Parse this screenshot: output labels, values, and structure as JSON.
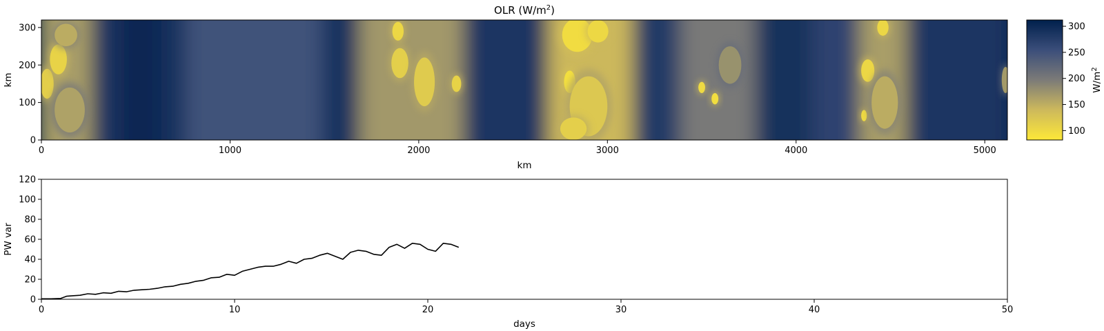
{
  "chart_data": [
    {
      "type": "heatmap",
      "title_main": "OLR (W/m",
      "title_sup": "2",
      "title_tail": ")",
      "xlabel": "km",
      "ylabel": "km",
      "xlim": [
        0,
        5120
      ],
      "ylim": [
        0,
        320
      ],
      "xticks": [
        "0",
        "1000",
        "2000",
        "3000",
        "4000",
        "5000"
      ],
      "xtick_values": [
        0,
        1000,
        2000,
        3000,
        4000,
        5000
      ],
      "yticks": [
        "0",
        "100",
        "200",
        "300"
      ],
      "ytick_values": [
        0,
        100,
        200,
        300
      ],
      "colormap": "cividis_r",
      "colors": {
        "high": "#00204c",
        "mid": "#7c7b78",
        "low": "#fde838"
      },
      "colorbar": {
        "label_main": "W/m",
        "label_sup": "2",
        "range": [
          82,
          312
        ],
        "ticks": [
          "100",
          "150",
          "200",
          "250",
          "300"
        ],
        "tick_values": [
          100,
          150,
          200,
          250,
          300
        ]
      },
      "background_bands": [
        {
          "x": [
            0,
            280
          ],
          "olr": 165
        },
        {
          "x": [
            280,
            420
          ],
          "olr": 285
        },
        {
          "x": [
            420,
            650
          ],
          "olr": 305
        },
        {
          "x": [
            650,
            780
          ],
          "olr": 290
        },
        {
          "x": [
            780,
            1500
          ],
          "olr": 250
        },
        {
          "x": [
            1500,
            1700
          ],
          "olr": 288
        },
        {
          "x": [
            1700,
            2250
          ],
          "olr": 170
        },
        {
          "x": [
            2250,
            2700
          ],
          "olr": 285
        },
        {
          "x": [
            2700,
            3150
          ],
          "olr": 140
        },
        {
          "x": [
            3150,
            3400
          ],
          "olr": 280
        },
        {
          "x": [
            3400,
            3800
          ],
          "olr": 200
        },
        {
          "x": [
            3800,
            4100
          ],
          "olr": 292
        },
        {
          "x": [
            4100,
            4350
          ],
          "olr": 268
        },
        {
          "x": [
            4350,
            4600
          ],
          "olr": 165
        },
        {
          "x": [
            4600,
            5120
          ],
          "olr": 285
        }
      ],
      "convective_cells": [
        {
          "x": 30,
          "y": 150,
          "rx": 35,
          "ry": 40,
          "olr": 110
        },
        {
          "x": 90,
          "y": 215,
          "rx": 45,
          "ry": 40,
          "olr": 105
        },
        {
          "x": 130,
          "y": 280,
          "rx": 60,
          "ry": 30,
          "olr": 150
        },
        {
          "x": 150,
          "y": 80,
          "rx": 80,
          "ry": 60,
          "olr": 160
        },
        {
          "x": 1890,
          "y": 290,
          "rx": 30,
          "ry": 25,
          "olr": 100
        },
        {
          "x": 1900,
          "y": 205,
          "rx": 45,
          "ry": 40,
          "olr": 110
        },
        {
          "x": 2030,
          "y": 155,
          "rx": 55,
          "ry": 65,
          "olr": 115
        },
        {
          "x": 2200,
          "y": 150,
          "rx": 25,
          "ry": 22,
          "olr": 105
        },
        {
          "x": 2800,
          "y": 155,
          "rx": 30,
          "ry": 30,
          "olr": 90
        },
        {
          "x": 2840,
          "y": 280,
          "rx": 80,
          "ry": 45,
          "olr": 95
        },
        {
          "x": 2950,
          "y": 290,
          "rx": 55,
          "ry": 30,
          "olr": 100
        },
        {
          "x": 2900,
          "y": 90,
          "rx": 100,
          "ry": 80,
          "olr": 120
        },
        {
          "x": 2820,
          "y": 30,
          "rx": 70,
          "ry": 30,
          "olr": 110
        },
        {
          "x": 3500,
          "y": 140,
          "rx": 18,
          "ry": 15,
          "olr": 95
        },
        {
          "x": 3570,
          "y": 110,
          "rx": 18,
          "ry": 15,
          "olr": 90
        },
        {
          "x": 3650,
          "y": 200,
          "rx": 60,
          "ry": 50,
          "olr": 175
        },
        {
          "x": 4460,
          "y": 300,
          "rx": 30,
          "ry": 22,
          "olr": 100
        },
        {
          "x": 4380,
          "y": 185,
          "rx": 35,
          "ry": 30,
          "olr": 100
        },
        {
          "x": 4360,
          "y": 65,
          "rx": 15,
          "ry": 15,
          "olr": 95
        },
        {
          "x": 4470,
          "y": 100,
          "rx": 70,
          "ry": 70,
          "olr": 150
        },
        {
          "x": 5110,
          "y": 160,
          "rx": 20,
          "ry": 35,
          "olr": 165
        }
      ]
    },
    {
      "type": "line",
      "xlabel": "days",
      "ylabel": "PW var",
      "xlim": [
        0,
        50
      ],
      "ylim": [
        0,
        120
      ],
      "xticks": [
        "0",
        "10",
        "20",
        "30",
        "40",
        "50"
      ],
      "xtick_values": [
        0,
        10,
        20,
        30,
        40,
        50
      ],
      "yticks": [
        "0",
        "20",
        "40",
        "60",
        "80",
        "100",
        "120"
      ],
      "ytick_values": [
        0,
        20,
        40,
        60,
        80,
        100,
        120
      ],
      "line_color": "#000000",
      "series": [
        {
          "x": [
            0,
            0.5,
            1.0,
            1.3,
            1.6,
            2.0,
            2.4,
            2.8,
            3.2,
            3.6,
            4.0,
            4.4,
            4.8,
            5.2,
            5.6,
            6.0,
            6.4,
            6.8,
            7.2,
            7.6,
            8.0,
            8.4,
            8.8,
            9.2,
            9.6,
            10.0,
            10.4,
            10.8,
            11.2,
            11.6,
            12.0,
            12.4,
            12.8,
            13.2,
            13.6,
            14.0,
            14.4,
            14.8,
            15.2,
            15.6,
            16.0,
            16.4,
            16.8,
            17.2,
            17.6,
            18.0,
            18.4,
            18.8,
            19.2,
            19.6,
            20.0,
            20.4,
            20.8,
            21.2,
            21.6
          ],
          "y": [
            0.5,
            0.5,
            0.8,
            3,
            3.5,
            4,
            5.5,
            5,
            6.5,
            6,
            8,
            7.5,
            9,
            9.5,
            10,
            11,
            12.5,
            13,
            15,
            16,
            18,
            19,
            21.5,
            22,
            25,
            24,
            28,
            30,
            32,
            33,
            33,
            35,
            38,
            36,
            40,
            41,
            44,
            46,
            43,
            40,
            47,
            49,
            48,
            45,
            44,
            52,
            55,
            51,
            56,
            55,
            50,
            48,
            56,
            55,
            52
          ]
        }
      ]
    }
  ]
}
